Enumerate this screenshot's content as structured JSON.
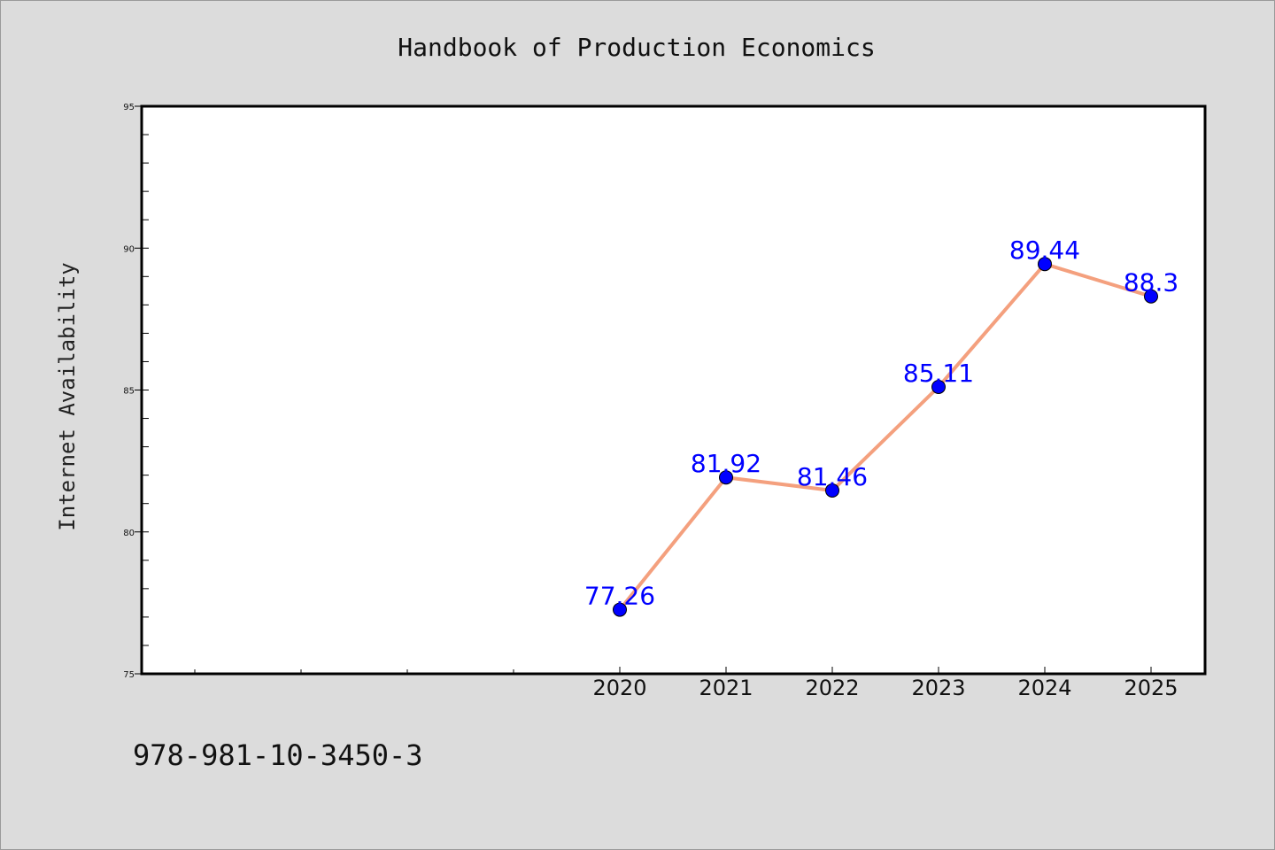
{
  "chart_data": {
    "type": "line",
    "title": "Handbook of Production Economics",
    "xlabel": "",
    "ylabel": "Internet Availability",
    "categories": [
      "2020",
      "2021",
      "2022",
      "2023",
      "2024",
      "2025"
    ],
    "series": [
      {
        "values": [
          77.26,
          81.92,
          81.46,
          85.11,
          89.44,
          88.3
        ]
      }
    ],
    "data_labels": [
      "77.26",
      "81.92",
      "81.46",
      "85.11",
      "89.44",
      "88.3"
    ],
    "ylim": [
      75,
      95
    ],
    "yticks": [
      "75",
      "80",
      "85",
      "90",
      "95"
    ],
    "grid": false,
    "legend": "none",
    "colors": {
      "line": "#f4a07e",
      "marker": "#0000ff",
      "label": "#0000ff",
      "background": "#dcdcdc",
      "plot_background": "#ffffff"
    }
  },
  "footer": {
    "isbn": "978-981-10-3450-3"
  }
}
